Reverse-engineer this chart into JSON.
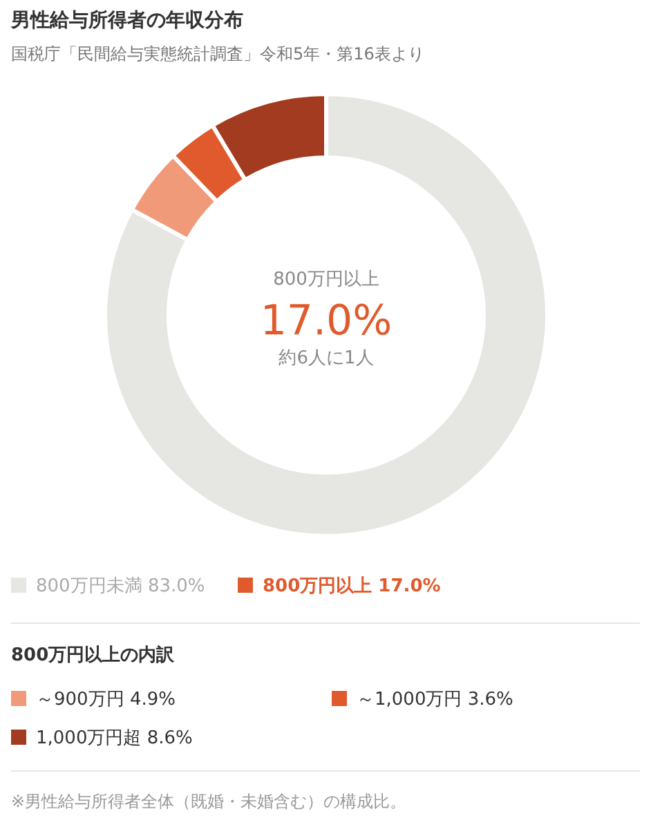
{
  "chart_data": {
    "type": "donut",
    "title": "男性給与所得者の年収分布",
    "subtitle": "国税庁「民間給与実態統計調査」令和5年・第16表より",
    "categories": [
      "800万円未満",
      "～900万円",
      "～1,000万円",
      "1,000万円超"
    ],
    "values": [
      83.0,
      4.9,
      3.6,
      8.6
    ],
    "colors": [
      "#e6e6e3",
      "#f09a7a",
      "#e05a2d",
      "#a23b1f"
    ],
    "value_labels": [
      "83.0%",
      "4.9%",
      "3.6%",
      "8.6%"
    ],
    "annotations": [
      "800万円以上",
      "17.0%",
      "約6人に1人",
      "800万円以上 17.0%",
      "800万円以上の内訳",
      "※男性給与所得者全体（既婚・未婚含む）の構成比。"
    ],
    "legend": "bottom"
  }
}
